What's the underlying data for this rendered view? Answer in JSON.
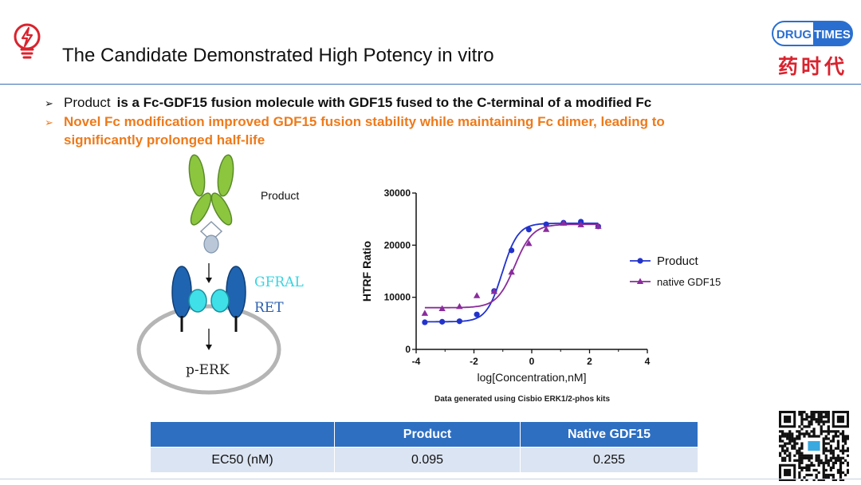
{
  "header": {
    "title": "The Candidate Demonstrated High Potency in vitro",
    "logo_text_left": "DRUG",
    "logo_text_right": "TIMES",
    "logo_cn": "药时代",
    "icon": "lightbulb-lightning-icon",
    "colors": {
      "rule": "#3a6fb3",
      "logo_red": "#d9232e",
      "logo_blue": "#2a6fd0"
    }
  },
  "bullets": {
    "b1_product": "Product",
    "b1_rest": "is a Fc-GDF15 fusion molecule with GDF15 fused to the C-terminal of a modified Fc",
    "b2_line1": "Novel Fc modification improved GDF15 fusion stability while maintaining Fc dimer, leading to",
    "b2_line2": "significantly prolonged half-life",
    "arrow": "➢",
    "accent": "#ee7a1a"
  },
  "diagram": {
    "product_label": "Product",
    "gfral_label": "GFRAL",
    "ret_label": "RET",
    "perk_label": "p-ERK"
  },
  "chart_data": {
    "type": "scatter",
    "title": "",
    "xlabel": "log[Concentration,nM]",
    "ylabel": "HTRF Ratio",
    "xlim": [
      -4,
      4
    ],
    "ylim": [
      0,
      30000
    ],
    "xticks": [
      "-4",
      "-2",
      "0",
      "2",
      "4"
    ],
    "yticks": [
      "0",
      "10000",
      "20000",
      "30000"
    ],
    "legend_position": "right",
    "series": [
      {
        "name": "Product",
        "color": "#2233cc",
        "marker": "circle",
        "x": [
          -3.7,
          -3.1,
          -2.5,
          -1.9,
          -1.3,
          -0.7,
          -0.1,
          0.5,
          1.1,
          1.7,
          2.3
        ],
        "y": [
          5200,
          5300,
          5400,
          6700,
          11200,
          19000,
          23000,
          24000,
          24300,
          24500,
          23600
        ],
        "fit": {
          "bottom": 5300,
          "top": 24200,
          "logEC50": -1.02,
          "hill": 1.6
        }
      },
      {
        "name": "native GDF15",
        "color": "#8a2c9c",
        "marker": "triangle",
        "x": [
          -3.7,
          -3.1,
          -2.5,
          -1.9,
          -1.3,
          -0.7,
          -0.1,
          0.5,
          1.1,
          1.7,
          2.3
        ],
        "y": [
          6900,
          7800,
          8200,
          10300,
          11100,
          14800,
          20300,
          23000,
          24200,
          23900,
          23600
        ],
        "fit": {
          "bottom": 8000,
          "top": 24000,
          "logEC50": -0.59,
          "hill": 1.4
        }
      }
    ],
    "note": "Data generated using Cisbio ERK1/2-phos kits"
  },
  "table": {
    "headers": [
      "",
      "Product",
      "Native GDF15"
    ],
    "row_label": "EC50 (nM)",
    "values": [
      "0.095",
      "0.255"
    ]
  }
}
